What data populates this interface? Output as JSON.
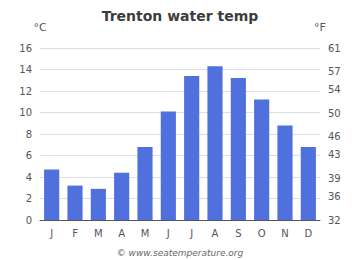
{
  "chart_data": {
    "type": "bar",
    "title": "Trenton water temp",
    "categories": [
      "J",
      "F",
      "M",
      "A",
      "M",
      "J",
      "J",
      "A",
      "S",
      "O",
      "N",
      "D"
    ],
    "values": [
      4.7,
      3.2,
      2.9,
      4.4,
      6.8,
      10.1,
      13.4,
      14.3,
      13.2,
      11.2,
      8.8,
      6.8
    ],
    "ylim": [
      0,
      16
    ],
    "yticks": [
      0,
      2,
      4,
      6,
      8,
      10,
      12,
      14,
      16
    ],
    "y2lim": [
      32,
      61
    ],
    "y2ticks": [
      32,
      36,
      39,
      43,
      46,
      50,
      54,
      57,
      61
    ],
    "ylabel": "°C",
    "y2label": "°F",
    "annotations": [
      "© www.seatemperature.org"
    ],
    "grid": true
  }
}
